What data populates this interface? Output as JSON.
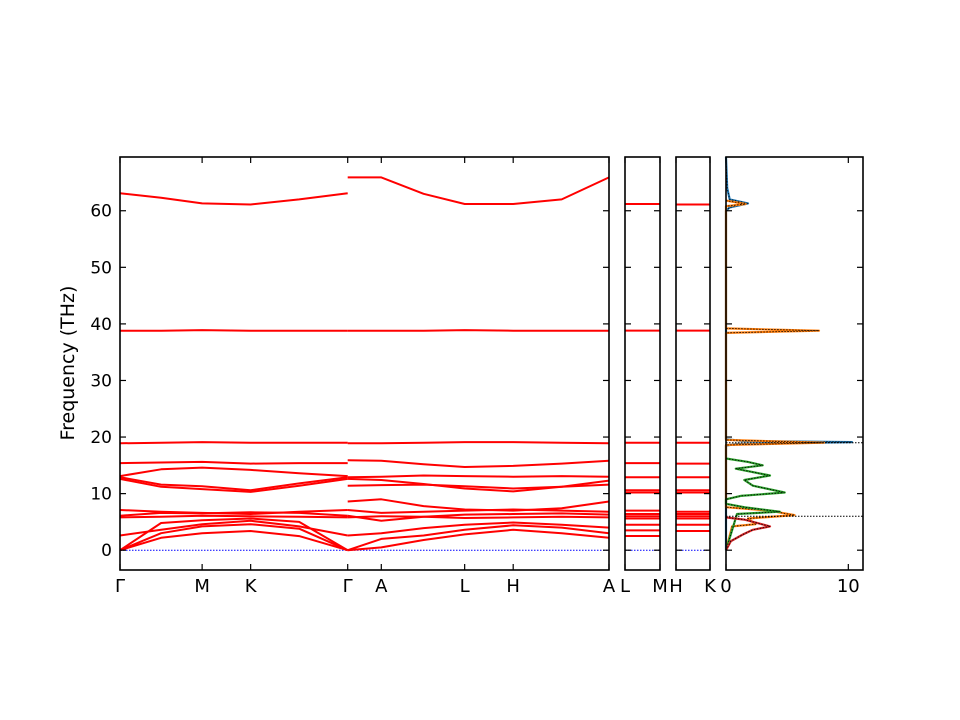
{
  "chart_data": {
    "type": "line",
    "title": "",
    "ylabel": "Frequency (THz)",
    "ylim": [
      -3.5,
      69.5
    ],
    "y_ticks": [
      0,
      10,
      20,
      30,
      40,
      50,
      60
    ],
    "grid": false,
    "line_color": "#ff0000",
    "zero_line_color": "#0000ff",
    "band_panels": [
      {
        "name": "main",
        "k_range": [
          0,
          3.93
        ],
        "tick_labels": [
          {
            "k": 0,
            "text": "Γ"
          },
          {
            "k": 0.66,
            "text": "M"
          },
          {
            "k": 1.05,
            "text": "K"
          },
          {
            "k": 1.83,
            "text": "Γ"
          },
          {
            "k": 2.1,
            "text": "A"
          },
          {
            "k": 2.77,
            "text": "L"
          },
          {
            "k": 3.16,
            "text": "H"
          },
          {
            "k": 3.93,
            "text": "A"
          }
        ],
        "segments": [
          {
            "k": [
              0,
              0.33,
              0.66,
              1.05,
              1.44,
              1.83
            ],
            "bands": [
              [
                0,
                2.2,
                3.0,
                3.4,
                2.5,
                0
              ],
              [
                0,
                3.0,
                4.2,
                4.6,
                3.8,
                0
              ],
              [
                0,
                4.8,
                5.3,
                5.6,
                5.0,
                0
              ],
              [
                2.6,
                3.6,
                4.6,
                5.2,
                4.2,
                2.6
              ],
              [
                5.8,
                5.9,
                6.1,
                6.0,
                5.9,
                5.8
              ],
              [
                6.1,
                6.6,
                6.5,
                6.7,
                6.6,
                6.1
              ],
              [
                7.1,
                6.8,
                6.6,
                6.4,
                6.8,
                7.1
              ],
              [
                12.6,
                11.2,
                10.8,
                10.3,
                11.4,
                12.6
              ],
              [
                12.9,
                11.6,
                11.3,
                10.6,
                11.8,
                12.9
              ],
              [
                13.1,
                14.3,
                14.6,
                14.2,
                13.6,
                13.1
              ],
              [
                15.4,
                15.5,
                15.6,
                15.3,
                15.4,
                15.4
              ],
              [
                18.9,
                19.0,
                19.1,
                19.0,
                19.0,
                19.0
              ],
              [
                38.8,
                38.8,
                38.9,
                38.8,
                38.8,
                38.8
              ],
              [
                63.1,
                62.3,
                61.3,
                61.1,
                62.0,
                63.1
              ]
            ]
          },
          {
            "k": [
              1.83,
              2.1,
              2.44,
              2.77,
              3.16,
              3.55,
              3.93
            ],
            "bands": [
              [
                0,
                0.5,
                1.8,
                2.8,
                3.6,
                3.0,
                2.2
              ],
              [
                0,
                2.0,
                2.6,
                3.6,
                4.4,
                4.0,
                3.0
              ],
              [
                2.6,
                3.0,
                3.9,
                4.5,
                4.9,
                4.5,
                4.0
              ],
              [
                5.8,
                6.0,
                5.9,
                5.7,
                5.8,
                5.9,
                5.8
              ],
              [
                6.1,
                5.2,
                5.9,
                6.3,
                6.4,
                6.5,
                6.3
              ],
              [
                7.1,
                6.6,
                6.8,
                7.0,
                7.2,
                7.0,
                6.8
              ],
              [
                8.6,
                9.0,
                7.8,
                7.2,
                7.0,
                7.4,
                8.6
              ],
              [
                11.4,
                11.5,
                11.6,
                11.3,
                10.9,
                11.2,
                11.6
              ],
              [
                12.6,
                12.4,
                11.7,
                10.9,
                10.4,
                11.2,
                12.3
              ],
              [
                12.9,
                13.0,
                13.2,
                13.1,
                13.0,
                13.1,
                13.0
              ],
              [
                15.9,
                15.8,
                15.2,
                14.7,
                14.9,
                15.3,
                15.8
              ],
              [
                18.9,
                18.9,
                19.0,
                19.1,
                19.1,
                19.0,
                18.9
              ],
              [
                38.8,
                38.8,
                38.8,
                38.9,
                38.8,
                38.8,
                38.8
              ],
              [
                65.9,
                65.9,
                63.0,
                61.2,
                61.2,
                62.0,
                65.9
              ]
            ]
          }
        ]
      },
      {
        "name": "L-M",
        "k_range": [
          0,
          1
        ],
        "tick_labels": [
          {
            "k": 0,
            "text": "L"
          },
          {
            "k": 1,
            "text": "M"
          }
        ],
        "flat_bands": [
          0,
          2.5,
          3.5,
          4.5,
          5.6,
          6.0,
          6.4,
          7.0,
          10.2,
          10.6,
          12.9,
          15.4,
          19.0,
          38.8,
          61.2
        ]
      },
      {
        "name": "H-K",
        "k_range": [
          0,
          1
        ],
        "tick_labels": [
          {
            "k": 0,
            "text": "H"
          },
          {
            "k": 1,
            "text": "K"
          }
        ],
        "flat_bands": [
          0,
          3.4,
          4.5,
          5.6,
          6.0,
          6.4,
          6.8,
          10.2,
          10.6,
          12.9,
          15.3,
          19.0,
          38.8,
          61.1
        ]
      }
    ],
    "dos_panel": {
      "x_range": [
        0,
        11.2
      ],
      "x_ticks": [
        0,
        10
      ],
      "reference_lines": [
        19.0,
        6.0
      ],
      "reference_line_x_end": 11.2,
      "series": [
        {
          "color": "#1f77b4",
          "points": [
            [
              0.0,
              69.5
            ],
            [
              0.1,
              64.0
            ],
            [
              0.3,
              62.0
            ],
            [
              1.8,
              61.3
            ],
            [
              0.3,
              60.6
            ],
            [
              0,
              60.0
            ],
            [
              0,
              19.6
            ],
            [
              1.5,
              19.3
            ],
            [
              10.3,
              19.1
            ],
            [
              1.0,
              18.8
            ],
            [
              0,
              18.5
            ],
            [
              0,
              0
            ]
          ]
        },
        {
          "color": "#ff7f0e",
          "points": [
            [
              0,
              61.8
            ],
            [
              1.6,
              61.2
            ],
            [
              0,
              60.8
            ],
            [
              0,
              39.2
            ],
            [
              7.6,
              38.8
            ],
            [
              0,
              38.4
            ],
            [
              0,
              19.5
            ],
            [
              8.0,
              19.0
            ],
            [
              0,
              18.6
            ],
            [
              0,
              7.6
            ],
            [
              3.5,
              7.0
            ],
            [
              5.6,
              6.2
            ],
            [
              1.8,
              5.6
            ],
            [
              2.4,
              4.6
            ],
            [
              0.5,
              4.2
            ],
            [
              0,
              0
            ]
          ]
        },
        {
          "color": "#2ca02c",
          "points": [
            [
              0,
              16.2
            ],
            [
              1.8,
              15.6
            ],
            [
              3.0,
              15.0
            ],
            [
              0.8,
              14.4
            ],
            [
              3.6,
              13.2
            ],
            [
              1.5,
              12.4
            ],
            [
              2.2,
              11.4
            ],
            [
              4.8,
              10.2
            ],
            [
              1.2,
              9.6
            ],
            [
              0,
              9.0
            ],
            [
              0,
              8.2
            ],
            [
              1.5,
              7.6
            ],
            [
              4.4,
              6.8
            ],
            [
              0.9,
              6.4
            ],
            [
              0,
              0
            ]
          ]
        },
        {
          "color": "#d62728",
          "points": [
            [
              0,
              5.8
            ],
            [
              1.5,
              5.4
            ],
            [
              3.6,
              4.2
            ],
            [
              2.2,
              3.6
            ],
            [
              1.4,
              2.8
            ],
            [
              0.4,
              1.6
            ],
            [
              0,
              0
            ]
          ]
        }
      ]
    }
  }
}
